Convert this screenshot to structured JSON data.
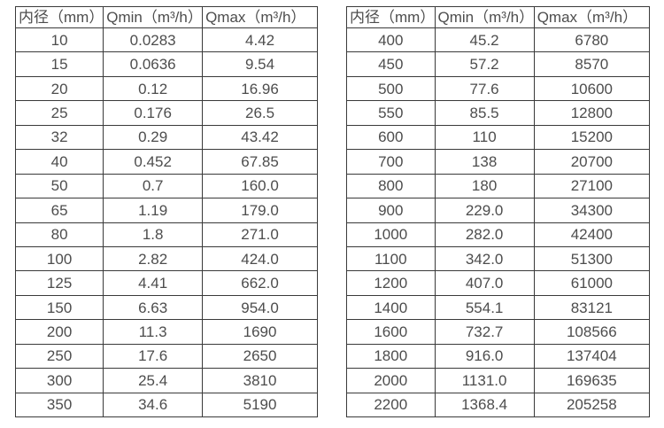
{
  "tables": [
    {
      "name": "small-diameters",
      "headers": [
        "内径（mm）",
        "Qmin（m³/h）",
        "Qmax（m³/h）"
      ],
      "rows": [
        [
          "10",
          "0.0283",
          "4.42"
        ],
        [
          "15",
          "0.0636",
          "9.54"
        ],
        [
          "20",
          "0.12",
          "16.96"
        ],
        [
          "25",
          "0.176",
          "26.5"
        ],
        [
          "32",
          "0.29",
          "43.42"
        ],
        [
          "40",
          "0.452",
          "67.85"
        ],
        [
          "50",
          "0.7",
          "160.0"
        ],
        [
          "65",
          "1.19",
          "179.0"
        ],
        [
          "80",
          "1.8",
          "271.0"
        ],
        [
          "100",
          "2.82",
          "424.0"
        ],
        [
          "125",
          "4.41",
          "662.0"
        ],
        [
          "150",
          "6.63",
          "954.0"
        ],
        [
          "200",
          "11.3",
          "1690"
        ],
        [
          "250",
          "17.6",
          "2650"
        ],
        [
          "300",
          "25.4",
          "3810"
        ],
        [
          "350",
          "34.6",
          "5190"
        ]
      ]
    },
    {
      "name": "large-diameters",
      "headers": [
        "内径（mm）",
        "Qmin（m³/h）",
        "Qmax（m³/h）"
      ],
      "rows": [
        [
          "400",
          "45.2",
          "6780"
        ],
        [
          "450",
          "57.2",
          "8570"
        ],
        [
          "500",
          "77.6",
          "10600"
        ],
        [
          "550",
          "85.5",
          "12800"
        ],
        [
          "600",
          "110",
          "15200"
        ],
        [
          "700",
          "138",
          "20700"
        ],
        [
          "800",
          "180",
          "27100"
        ],
        [
          "900",
          "229.0",
          "34300"
        ],
        [
          "1000",
          "282.0",
          "42400"
        ],
        [
          "1100",
          "342.0",
          "51300"
        ],
        [
          "1200",
          "407.0",
          "61000"
        ],
        [
          "1400",
          "554.1",
          "83121"
        ],
        [
          "1600",
          "732.7",
          "108566"
        ],
        [
          "1800",
          "916.0",
          "137404"
        ],
        [
          "2000",
          "1131.0",
          "169635"
        ],
        [
          "2200",
          "1368.4",
          "205258"
        ]
      ]
    }
  ],
  "colors": {
    "border": "#3a3a3a",
    "text": "#4d4d4d",
    "background": "#ffffff"
  }
}
